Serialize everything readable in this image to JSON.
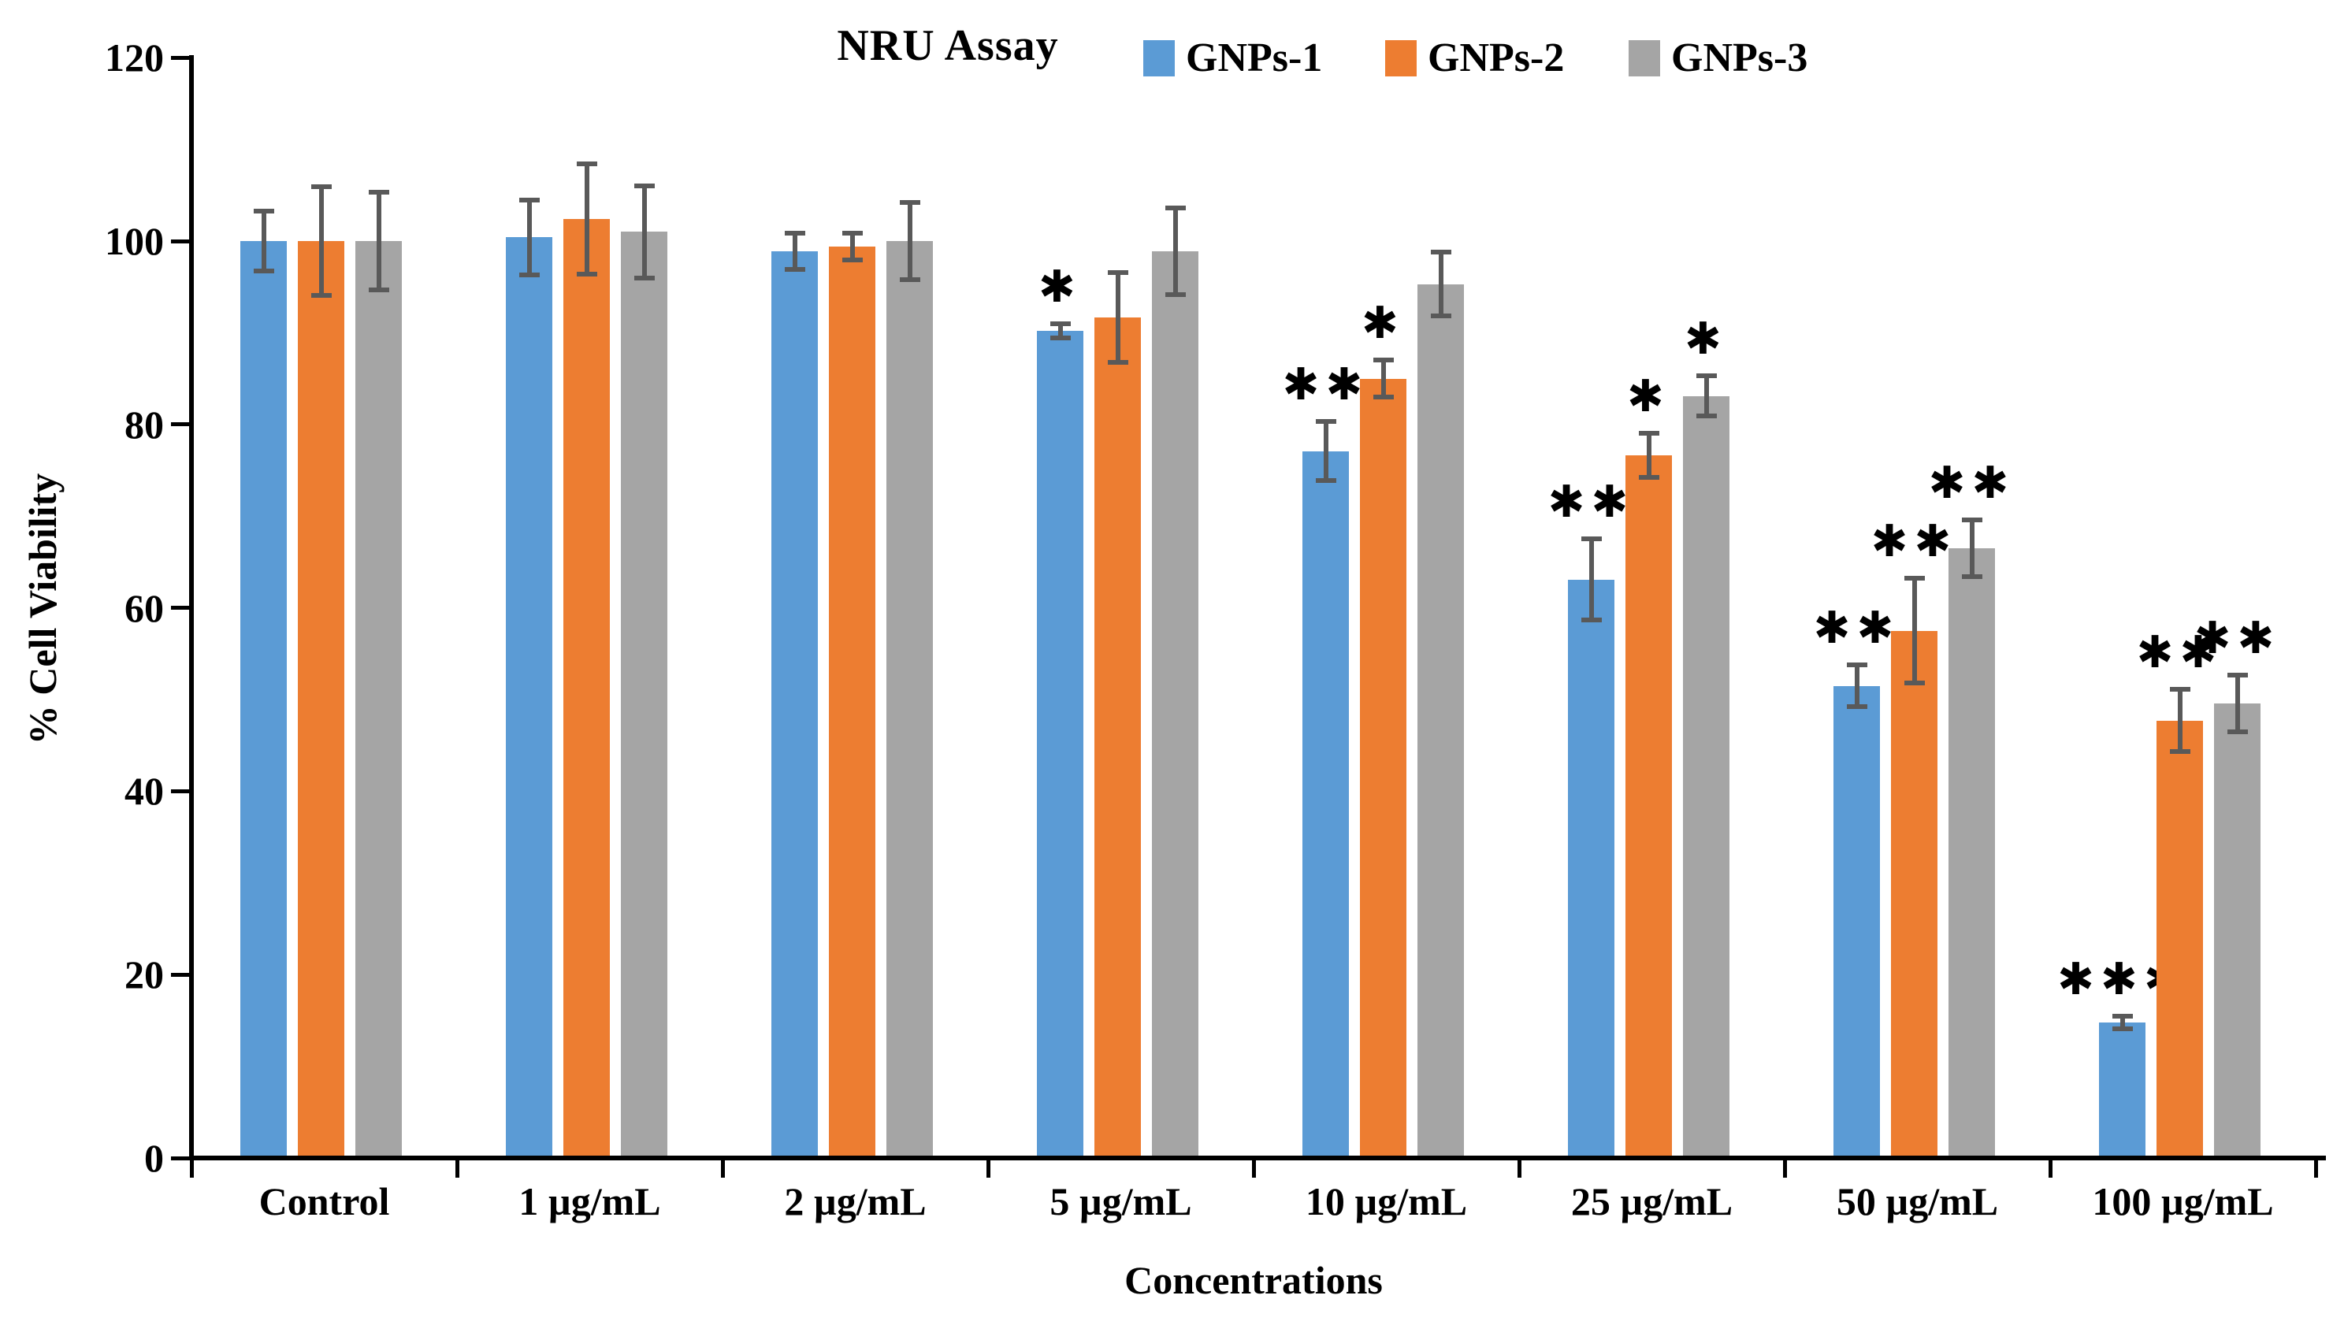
{
  "title": "NRU Assay",
  "legend": [
    {
      "label": "GNPs-1",
      "color": "#5B9BD5"
    },
    {
      "label": "GNPs-2",
      "color": "#ED7D31"
    },
    {
      "label": "GNPs-3",
      "color": "#A5A5A5"
    }
  ],
  "axes": {
    "y_label": "% Cell Viability",
    "x_label": "Concentrations",
    "y_ticks": [
      0,
      20,
      40,
      60,
      80,
      100,
      120
    ],
    "y_min": 0,
    "y_max": 120,
    "grid": "off",
    "legend_position": "top"
  },
  "colors": {
    "error_bar": "#595959",
    "axis": "#000000",
    "significance_marker": "#000000"
  },
  "chart_data": {
    "type": "bar",
    "title": "NRU Assay",
    "xlabel": "Concentrations",
    "ylabel": "% Cell Viability",
    "ylim": [
      0,
      120
    ],
    "categories": [
      "Control",
      "1 µg/mL",
      "2 µg/mL",
      "5 µg/mL",
      "10 µg/mL",
      "25 µg/mL",
      "50 µg/mL",
      "100 µg/mL"
    ],
    "series": [
      {
        "name": "GNPs-1",
        "color": "#5B9BD5",
        "values": [
          100,
          100.4,
          98.9,
          90.2,
          77.1,
          63.1,
          51.5,
          14.8
        ],
        "errors": [
          3.3,
          4.1,
          2.0,
          0.8,
          3.2,
          4.4,
          2.3,
          0.7
        ],
        "significance": [
          "",
          "",
          "",
          "*",
          "**",
          "**",
          "**",
          "***"
        ]
      },
      {
        "name": "GNPs-2",
        "color": "#ED7D31",
        "values": [
          100,
          102.4,
          99.4,
          91.7,
          85.0,
          76.6,
          57.5,
          47.7
        ],
        "errors": [
          5.9,
          6.0,
          1.5,
          4.9,
          2.0,
          2.4,
          5.7,
          3.4
        ],
        "significance": [
          "",
          "",
          "",
          "",
          "*",
          "*",
          "**",
          "**"
        ]
      },
      {
        "name": "GNPs-3",
        "color": "#A5A5A5",
        "values": [
          100,
          101.0,
          100.0,
          98.9,
          95.3,
          83.1,
          66.5,
          49.6
        ],
        "errors": [
          5.3,
          5.0,
          4.2,
          4.7,
          3.5,
          2.2,
          3.1,
          3.1
        ],
        "significance": [
          "",
          "",
          "",
          "",
          "",
          "*",
          "**",
          "**"
        ]
      }
    ]
  }
}
